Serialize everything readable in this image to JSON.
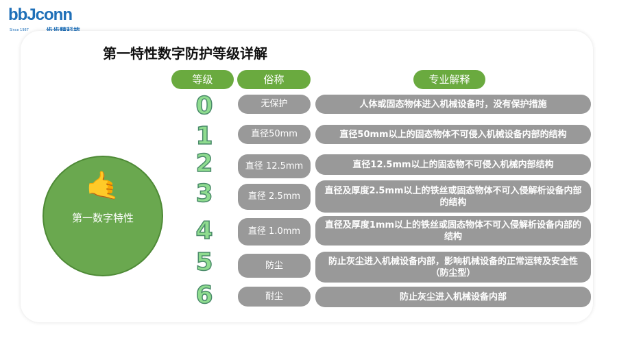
{
  "logo": {
    "brand": "bbJconn",
    "since": "Since 1987",
    "cn": "步步精科技"
  },
  "title": "第一特性数字防护等级详解",
  "headers": {
    "level": "等级",
    "name": "俗称",
    "desc": "专业解释"
  },
  "circle_label": "第一数字特性",
  "icon": "hand-gesture-icon",
  "colors": {
    "green": "#6aaa3f",
    "gray": "#999999",
    "brand": "#1e6fb8"
  },
  "rows": [
    {
      "level": "0",
      "name": "无保护",
      "desc": "人体或固态物体进入机械设备时，没有保护措施"
    },
    {
      "level": "1",
      "name": "直径50mm",
      "desc": "直径50mm以上的固态物体不可侵入机械设备内部的结构"
    },
    {
      "level": "2",
      "name": "直径 12.5mm",
      "desc": "直径12.5mm以上的固态物不可侵入机械内部结构"
    },
    {
      "level": "3",
      "name": "直径 2.5mm",
      "desc": "直径及厚度2.5mm以上的铁丝或固态物体不可入侵解析设备内部的结构"
    },
    {
      "level": "4",
      "name": "直径 1.0mm",
      "desc": "直径及厚度1mm以上的铁丝或固态物体不可入侵解析设备内部的结构"
    },
    {
      "level": "5",
      "name": "防尘",
      "desc": "防止灰尘进入机械设备内部，影响机械设备的正常运转及安全性（防尘型）"
    },
    {
      "level": "6",
      "name": "耐尘",
      "desc": "防止灰尘进入机械设备内部"
    }
  ]
}
